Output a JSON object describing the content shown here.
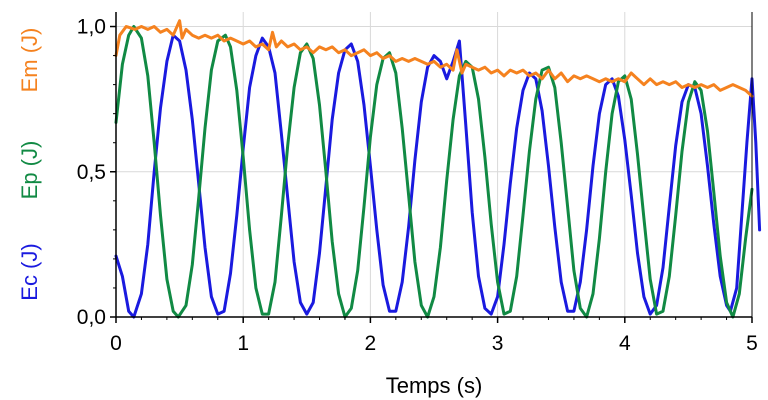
{
  "chart_data": {
    "type": "line",
    "title": "",
    "xlabel": "Temps (s)",
    "ylabels": [
      "Ec (J)",
      "Ep (J)",
      "Em (J)"
    ],
    "xlim": [
      0,
      5
    ],
    "ylim": [
      0,
      1.05
    ],
    "grid": true,
    "legend": "none",
    "x_ticks": [
      {
        "value": 0,
        "label": "0"
      },
      {
        "value": 1,
        "label": "1"
      },
      {
        "value": 2,
        "label": "2"
      },
      {
        "value": 3,
        "label": "3"
      },
      {
        "value": 4,
        "label": "4"
      },
      {
        "value": 5,
        "label": "5"
      }
    ],
    "y_ticks": [
      {
        "value": 0,
        "label": "0,0"
      },
      {
        "value": 0.5,
        "label": "0,5"
      },
      {
        "value": 1,
        "label": "1,0"
      }
    ],
    "series": [
      {
        "name": "Ec (J)",
        "color": "#1a1adf",
        "points": [
          [
            0,
            0.21
          ],
          [
            0.05,
            0.14
          ],
          [
            0.1,
            0.02
          ],
          [
            0.14,
            0
          ],
          [
            0.2,
            0.08
          ],
          [
            0.25,
            0.25
          ],
          [
            0.3,
            0.5
          ],
          [
            0.35,
            0.72
          ],
          [
            0.4,
            0.88
          ],
          [
            0.45,
            0.97
          ],
          [
            0.5,
            0.95
          ],
          [
            0.55,
            0.85
          ],
          [
            0.6,
            0.68
          ],
          [
            0.65,
            0.46
          ],
          [
            0.7,
            0.24
          ],
          [
            0.75,
            0.07
          ],
          [
            0.8,
            0.01
          ],
          [
            0.85,
            0.02
          ],
          [
            0.9,
            0.15
          ],
          [
            0.95,
            0.35
          ],
          [
            1.0,
            0.58
          ],
          [
            1.05,
            0.79
          ],
          [
            1.1,
            0.9
          ],
          [
            1.15,
            0.96
          ],
          [
            1.2,
            0.93
          ],
          [
            1.25,
            0.84
          ],
          [
            1.3,
            0.63
          ],
          [
            1.35,
            0.41
          ],
          [
            1.4,
            0.19
          ],
          [
            1.45,
            0.05
          ],
          [
            1.5,
            0.01
          ],
          [
            1.55,
            0.05
          ],
          [
            1.6,
            0.22
          ],
          [
            1.65,
            0.45
          ],
          [
            1.7,
            0.68
          ],
          [
            1.75,
            0.84
          ],
          [
            1.8,
            0.92
          ],
          [
            1.85,
            0.94
          ],
          [
            1.9,
            0.88
          ],
          [
            1.95,
            0.73
          ],
          [
            2.0,
            0.52
          ],
          [
            2.05,
            0.3
          ],
          [
            2.1,
            0.11
          ],
          [
            2.15,
            0.02
          ],
          [
            2.2,
            0.02
          ],
          [
            2.25,
            0.12
          ],
          [
            2.3,
            0.31
          ],
          [
            2.35,
            0.54
          ],
          [
            2.4,
            0.74
          ],
          [
            2.45,
            0.86
          ],
          [
            2.5,
            0.9
          ],
          [
            2.55,
            0.88
          ],
          [
            2.6,
            0.82
          ],
          [
            2.65,
            0.88
          ],
          [
            2.7,
            0.95
          ],
          [
            2.75,
            0.66
          ],
          [
            2.8,
            0.36
          ],
          [
            2.85,
            0.14
          ],
          [
            2.9,
            0.03
          ],
          [
            2.95,
            0.01
          ],
          [
            3.0,
            0.07
          ],
          [
            3.05,
            0.25
          ],
          [
            3.1,
            0.46
          ],
          [
            3.15,
            0.65
          ],
          [
            3.2,
            0.78
          ],
          [
            3.25,
            0.84
          ],
          [
            3.3,
            0.82
          ],
          [
            3.35,
            0.71
          ],
          [
            3.4,
            0.52
          ],
          [
            3.45,
            0.31
          ],
          [
            3.5,
            0.12
          ],
          [
            3.55,
            0.02
          ],
          [
            3.6,
            0.02
          ],
          [
            3.65,
            0.12
          ],
          [
            3.7,
            0.3
          ],
          [
            3.75,
            0.52
          ],
          [
            3.8,
            0.7
          ],
          [
            3.85,
            0.8
          ],
          [
            3.9,
            0.82
          ],
          [
            3.95,
            0.76
          ],
          [
            4.0,
            0.61
          ],
          [
            4.05,
            0.42
          ],
          [
            4.1,
            0.22
          ],
          [
            4.15,
            0.07
          ],
          [
            4.2,
            0.01
          ],
          [
            4.25,
            0.04
          ],
          [
            4.3,
            0.17
          ],
          [
            4.35,
            0.38
          ],
          [
            4.4,
            0.59
          ],
          [
            4.45,
            0.74
          ],
          [
            4.5,
            0.8
          ],
          [
            4.55,
            0.79
          ],
          [
            4.6,
            0.7
          ],
          [
            4.65,
            0.52
          ],
          [
            4.7,
            0.32
          ],
          [
            4.75,
            0.14
          ],
          [
            4.8,
            0.04
          ],
          [
            4.83,
            0.02
          ],
          [
            4.88,
            0.1
          ],
          [
            4.92,
            0.35
          ],
          [
            4.96,
            0.6
          ],
          [
            5.0,
            0.82
          ],
          [
            5.03,
            0.6
          ],
          [
            5.06,
            0.3
          ]
        ]
      },
      {
        "name": "Ep (J)",
        "color": "#118a44",
        "points": [
          [
            0,
            0.67
          ],
          [
            0.05,
            0.87
          ],
          [
            0.1,
            0.97
          ],
          [
            0.14,
            1.0
          ],
          [
            0.2,
            0.96
          ],
          [
            0.25,
            0.83
          ],
          [
            0.3,
            0.6
          ],
          [
            0.35,
            0.35
          ],
          [
            0.4,
            0.13
          ],
          [
            0.45,
            0.02
          ],
          [
            0.49,
            0
          ],
          [
            0.55,
            0.04
          ],
          [
            0.6,
            0.18
          ],
          [
            0.65,
            0.41
          ],
          [
            0.7,
            0.65
          ],
          [
            0.75,
            0.85
          ],
          [
            0.8,
            0.95
          ],
          [
            0.86,
            0.97
          ],
          [
            0.9,
            0.93
          ],
          [
            0.95,
            0.78
          ],
          [
            1.0,
            0.55
          ],
          [
            1.05,
            0.3
          ],
          [
            1.1,
            0.1
          ],
          [
            1.15,
            0.01
          ],
          [
            1.2,
            0.01
          ],
          [
            1.25,
            0.12
          ],
          [
            1.3,
            0.35
          ],
          [
            1.35,
            0.59
          ],
          [
            1.4,
            0.79
          ],
          [
            1.45,
            0.91
          ],
          [
            1.5,
            0.94
          ],
          [
            1.55,
            0.89
          ],
          [
            1.6,
            0.73
          ],
          [
            1.65,
            0.5
          ],
          [
            1.7,
            0.26
          ],
          [
            1.75,
            0.08
          ],
          [
            1.8,
            0
          ],
          [
            1.85,
            0.03
          ],
          [
            1.9,
            0.16
          ],
          [
            1.95,
            0.38
          ],
          [
            2.0,
            0.62
          ],
          [
            2.05,
            0.8
          ],
          [
            2.1,
            0.89
          ],
          [
            2.15,
            0.91
          ],
          [
            2.2,
            0.84
          ],
          [
            2.25,
            0.65
          ],
          [
            2.3,
            0.42
          ],
          [
            2.35,
            0.19
          ],
          [
            2.4,
            0.04
          ],
          [
            2.45,
            0
          ],
          [
            2.5,
            0.07
          ],
          [
            2.55,
            0.24
          ],
          [
            2.6,
            0.47
          ],
          [
            2.65,
            0.68
          ],
          [
            2.7,
            0.83
          ],
          [
            2.75,
            0.88
          ],
          [
            2.8,
            0.86
          ],
          [
            2.85,
            0.75
          ],
          [
            2.9,
            0.55
          ],
          [
            2.95,
            0.32
          ],
          [
            3.0,
            0.12
          ],
          [
            3.05,
            0.01
          ],
          [
            3.1,
            0.02
          ],
          [
            3.15,
            0.14
          ],
          [
            3.2,
            0.35
          ],
          [
            3.25,
            0.57
          ],
          [
            3.3,
            0.75
          ],
          [
            3.35,
            0.85
          ],
          [
            3.4,
            0.86
          ],
          [
            3.45,
            0.79
          ],
          [
            3.5,
            0.6
          ],
          [
            3.55,
            0.38
          ],
          [
            3.6,
            0.16
          ],
          [
            3.65,
            0.03
          ],
          [
            3.7,
            0
          ],
          [
            3.75,
            0.08
          ],
          [
            3.8,
            0.27
          ],
          [
            3.85,
            0.5
          ],
          [
            3.9,
            0.7
          ],
          [
            3.95,
            0.81
          ],
          [
            4.0,
            0.83
          ],
          [
            4.05,
            0.75
          ],
          [
            4.1,
            0.56
          ],
          [
            4.15,
            0.34
          ],
          [
            4.2,
            0.13
          ],
          [
            4.25,
            0.01
          ],
          [
            4.3,
            0.02
          ],
          [
            4.35,
            0.14
          ],
          [
            4.4,
            0.35
          ],
          [
            4.45,
            0.57
          ],
          [
            4.5,
            0.74
          ],
          [
            4.55,
            0.81
          ],
          [
            4.6,
            0.78
          ],
          [
            4.65,
            0.64
          ],
          [
            4.7,
            0.43
          ],
          [
            4.75,
            0.21
          ],
          [
            4.8,
            0.05
          ],
          [
            4.85,
            0
          ],
          [
            4.9,
            0.08
          ],
          [
            4.95,
            0.27
          ],
          [
            5.0,
            0.44
          ]
        ]
      },
      {
        "name": "Em (J)",
        "color": "#f5821f",
        "points": [
          [
            0,
            0.9
          ],
          [
            0.03,
            0.97
          ],
          [
            0.08,
            1.0
          ],
          [
            0.15,
            0.99
          ],
          [
            0.2,
            1.0
          ],
          [
            0.25,
            0.99
          ],
          [
            0.3,
            1.0
          ],
          [
            0.35,
            0.98
          ],
          [
            0.4,
            0.99
          ],
          [
            0.45,
            0.97
          ],
          [
            0.5,
            1.02
          ],
          [
            0.52,
            0.96
          ],
          [
            0.55,
            0.99
          ],
          [
            0.6,
            0.97
          ],
          [
            0.65,
            0.96
          ],
          [
            0.7,
            0.97
          ],
          [
            0.75,
            0.96
          ],
          [
            0.8,
            0.97
          ],
          [
            0.85,
            0.95
          ],
          [
            0.9,
            0.96
          ],
          [
            0.95,
            0.95
          ],
          [
            1.0,
            0.94
          ],
          [
            1.05,
            0.95
          ],
          [
            1.1,
            0.93
          ],
          [
            1.15,
            0.94
          ],
          [
            1.2,
            0.92
          ],
          [
            1.23,
            0.98
          ],
          [
            1.26,
            0.93
          ],
          [
            1.3,
            0.95
          ],
          [
            1.35,
            0.93
          ],
          [
            1.4,
            0.94
          ],
          [
            1.45,
            0.92
          ],
          [
            1.5,
            0.93
          ],
          [
            1.55,
            0.91
          ],
          [
            1.6,
            0.93
          ],
          [
            1.65,
            0.92
          ],
          [
            1.7,
            0.93
          ],
          [
            1.75,
            0.91
          ],
          [
            1.8,
            0.92
          ],
          [
            1.85,
            0.9
          ],
          [
            1.9,
            0.91
          ],
          [
            1.95,
            0.92
          ],
          [
            2.0,
            0.9
          ],
          [
            2.05,
            0.91
          ],
          [
            2.1,
            0.89
          ],
          [
            2.15,
            0.9
          ],
          [
            2.2,
            0.88
          ],
          [
            2.25,
            0.89
          ],
          [
            2.3,
            0.88
          ],
          [
            2.35,
            0.89
          ],
          [
            2.4,
            0.88
          ],
          [
            2.45,
            0.87
          ],
          [
            2.5,
            0.88
          ],
          [
            2.55,
            0.86
          ],
          [
            2.6,
            0.87
          ],
          [
            2.65,
            0.85
          ],
          [
            2.68,
            0.92
          ],
          [
            2.72,
            0.84
          ],
          [
            2.75,
            0.87
          ],
          [
            2.8,
            0.86
          ],
          [
            2.85,
            0.85
          ],
          [
            2.9,
            0.86
          ],
          [
            2.95,
            0.84
          ],
          [
            3.0,
            0.85
          ],
          [
            3.05,
            0.83
          ],
          [
            3.1,
            0.85
          ],
          [
            3.15,
            0.84
          ],
          [
            3.2,
            0.85
          ],
          [
            3.25,
            0.83
          ],
          [
            3.3,
            0.84
          ],
          [
            3.35,
            0.82
          ],
          [
            3.4,
            0.85
          ],
          [
            3.45,
            0.82
          ],
          [
            3.5,
            0.84
          ],
          [
            3.55,
            0.81
          ],
          [
            3.6,
            0.83
          ],
          [
            3.65,
            0.82
          ],
          [
            3.7,
            0.83
          ],
          [
            3.75,
            0.82
          ],
          [
            3.8,
            0.81
          ],
          [
            3.85,
            0.82
          ],
          [
            3.9,
            0.81
          ],
          [
            3.95,
            0.82
          ],
          [
            4.0,
            0.81
          ],
          [
            4.05,
            0.84
          ],
          [
            4.1,
            0.82
          ],
          [
            4.15,
            0.8
          ],
          [
            4.2,
            0.82
          ],
          [
            4.25,
            0.8
          ],
          [
            4.3,
            0.81
          ],
          [
            4.35,
            0.8
          ],
          [
            4.4,
            0.81
          ],
          [
            4.45,
            0.79
          ],
          [
            4.5,
            0.8
          ],
          [
            4.55,
            0.79
          ],
          [
            4.6,
            0.8
          ],
          [
            4.65,
            0.79
          ],
          [
            4.7,
            0.8
          ],
          [
            4.75,
            0.78
          ],
          [
            4.8,
            0.79
          ],
          [
            4.85,
            0.8
          ],
          [
            4.9,
            0.79
          ],
          [
            4.95,
            0.78
          ],
          [
            5.0,
            0.76
          ]
        ]
      }
    ]
  }
}
